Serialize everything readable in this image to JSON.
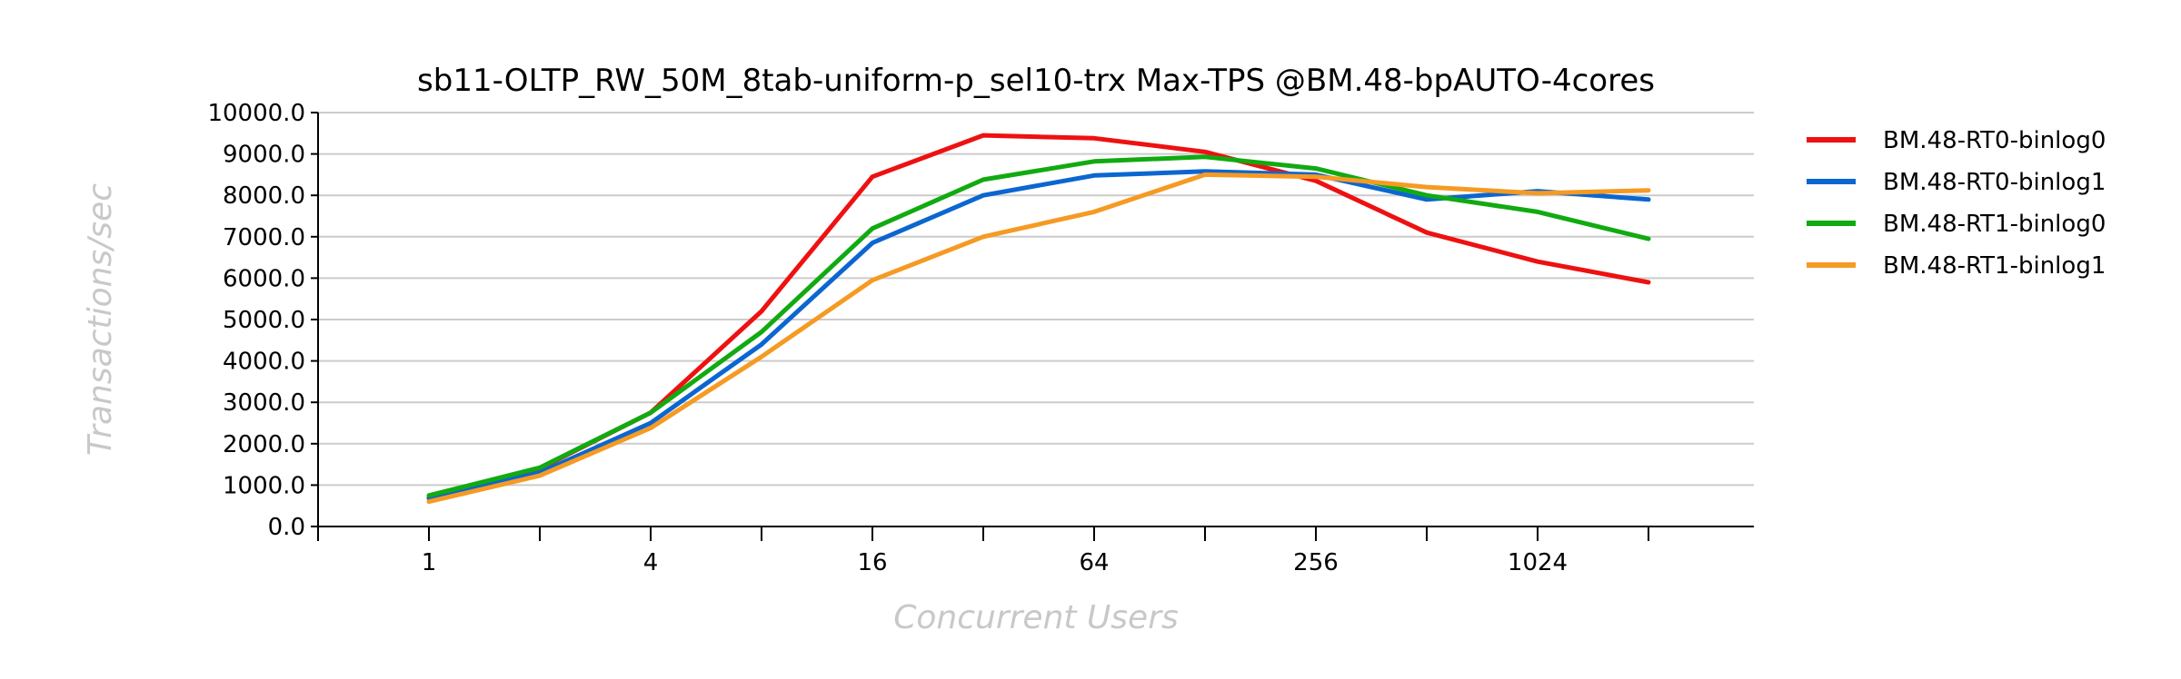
{
  "chart_data": {
    "type": "line",
    "title": "sb11-OLTP_RW_50M_8tab-uniform-p_sel10-trx Max-TPS @BM.48-bpAUTO-4cores",
    "xlabel": "Concurrent Users",
    "ylabel": "Transactions/sec",
    "x": [
      1,
      2,
      4,
      8,
      16,
      32,
      64,
      128,
      256,
      512,
      1024,
      2048
    ],
    "x_tick_labels": [
      "1",
      "4",
      "16",
      "64",
      "256",
      "1024"
    ],
    "x_tick_values": [
      1,
      4,
      16,
      64,
      256,
      1024
    ],
    "x_scale": "log2",
    "ylim": [
      0,
      10000
    ],
    "y_tick_labels": [
      "0.0",
      "1000.0",
      "2000.0",
      "3000.0",
      "4000.0",
      "5000.0",
      "6000.0",
      "7000.0",
      "8000.0",
      "9000.0",
      "10000.0"
    ],
    "grid": true,
    "legend_position": "right",
    "series": [
      {
        "name": "BM.48-RT0-binlog0",
        "color": "#ee1111",
        "values": [
          700,
          1400,
          2750,
          5200,
          8450,
          9450,
          9380,
          9050,
          8350,
          7100,
          6400,
          5900
        ]
      },
      {
        "name": "BM.48-RT0-binlog1",
        "color": "#0b66d0",
        "values": [
          680,
          1300,
          2500,
          4400,
          6850,
          8000,
          8480,
          8580,
          8500,
          7900,
          8100,
          7900
        ]
      },
      {
        "name": "BM.48-RT1-binlog0",
        "color": "#11aa11",
        "values": [
          750,
          1420,
          2750,
          4700,
          7200,
          8380,
          8820,
          8930,
          8650,
          8000,
          7600,
          6950
        ]
      },
      {
        "name": "BM.48-RT1-binlog1",
        "color": "#f59a23",
        "values": [
          600,
          1230,
          2380,
          4100,
          5950,
          7000,
          7600,
          8500,
          8450,
          8200,
          8050,
          8120
        ]
      }
    ]
  }
}
